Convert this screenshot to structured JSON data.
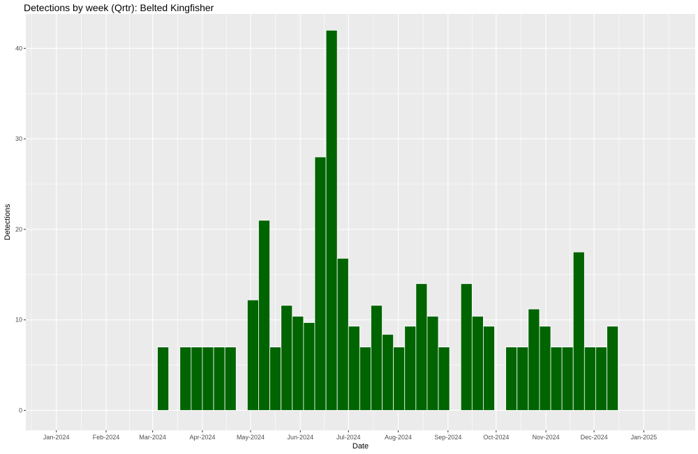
{
  "chart_data": {
    "type": "bar",
    "title": "Detections by week (Qrtr): Belted Kingfisher",
    "xlabel": "Date",
    "ylabel": "Detections",
    "ylim": [
      -2.2,
      43.8
    ],
    "yticks": [
      0,
      10,
      20,
      30,
      40
    ],
    "xlim": [
      "2023-12-13",
      "2025-02-02"
    ],
    "xticks": [
      {
        "date": "2024-01-01",
        "label": "Jan-2024"
      },
      {
        "date": "2024-02-01",
        "label": "Feb-2024"
      },
      {
        "date": "2024-03-01",
        "label": "Mar-2024"
      },
      {
        "date": "2024-04-01",
        "label": "Apr-2024"
      },
      {
        "date": "2024-05-01",
        "label": "May-2024"
      },
      {
        "date": "2024-06-01",
        "label": "Jun-2024"
      },
      {
        "date": "2024-07-01",
        "label": "Jul-2024"
      },
      {
        "date": "2024-08-01",
        "label": "Aug-2024"
      },
      {
        "date": "2024-09-01",
        "label": "Sep-2024"
      },
      {
        "date": "2024-10-01",
        "label": "Oct-2024"
      },
      {
        "date": "2024-11-01",
        "label": "Nov-2024"
      },
      {
        "date": "2024-12-01",
        "label": "Dec-2024"
      },
      {
        "date": "2025-01-01",
        "label": "Jan-2025"
      }
    ],
    "bar_color": "#006400",
    "panel_color": "#ebebeb",
    "grid": true,
    "legend": "none",
    "bars": [
      {
        "x": "2024-03-04",
        "y": 7
      },
      {
        "x": "2024-03-18",
        "y": 7
      },
      {
        "x": "2024-03-25",
        "y": 7
      },
      {
        "x": "2024-04-01",
        "y": 7
      },
      {
        "x": "2024-04-08",
        "y": 7
      },
      {
        "x": "2024-04-15",
        "y": 7
      },
      {
        "x": "2024-04-29",
        "y": 12.2
      },
      {
        "x": "2024-05-06",
        "y": 21
      },
      {
        "x": "2024-05-13",
        "y": 7
      },
      {
        "x": "2024-05-20",
        "y": 11.6
      },
      {
        "x": "2024-05-27",
        "y": 10.4
      },
      {
        "x": "2024-06-03",
        "y": 9.7
      },
      {
        "x": "2024-06-10",
        "y": 28
      },
      {
        "x": "2024-06-17",
        "y": 42
      },
      {
        "x": "2024-06-24",
        "y": 16.8
      },
      {
        "x": "2024-07-01",
        "y": 9.3
      },
      {
        "x": "2024-07-08",
        "y": 7
      },
      {
        "x": "2024-07-15",
        "y": 11.6
      },
      {
        "x": "2024-07-22",
        "y": 8.4
      },
      {
        "x": "2024-07-29",
        "y": 7
      },
      {
        "x": "2024-08-05",
        "y": 9.3
      },
      {
        "x": "2024-08-12",
        "y": 14
      },
      {
        "x": "2024-08-19",
        "y": 10.4
      },
      {
        "x": "2024-08-26",
        "y": 7
      },
      {
        "x": "2024-09-09",
        "y": 14
      },
      {
        "x": "2024-09-16",
        "y": 10.4
      },
      {
        "x": "2024-09-23",
        "y": 9.3
      },
      {
        "x": "2024-10-07",
        "y": 7
      },
      {
        "x": "2024-10-14",
        "y": 7
      },
      {
        "x": "2024-10-21",
        "y": 11.2
      },
      {
        "x": "2024-10-28",
        "y": 9.3
      },
      {
        "x": "2024-11-04",
        "y": 7
      },
      {
        "x": "2024-11-11",
        "y": 7
      },
      {
        "x": "2024-11-18",
        "y": 17.5
      },
      {
        "x": "2024-11-25",
        "y": 7
      },
      {
        "x": "2024-12-02",
        "y": 7
      },
      {
        "x": "2024-12-09",
        "y": 9.3
      }
    ]
  }
}
